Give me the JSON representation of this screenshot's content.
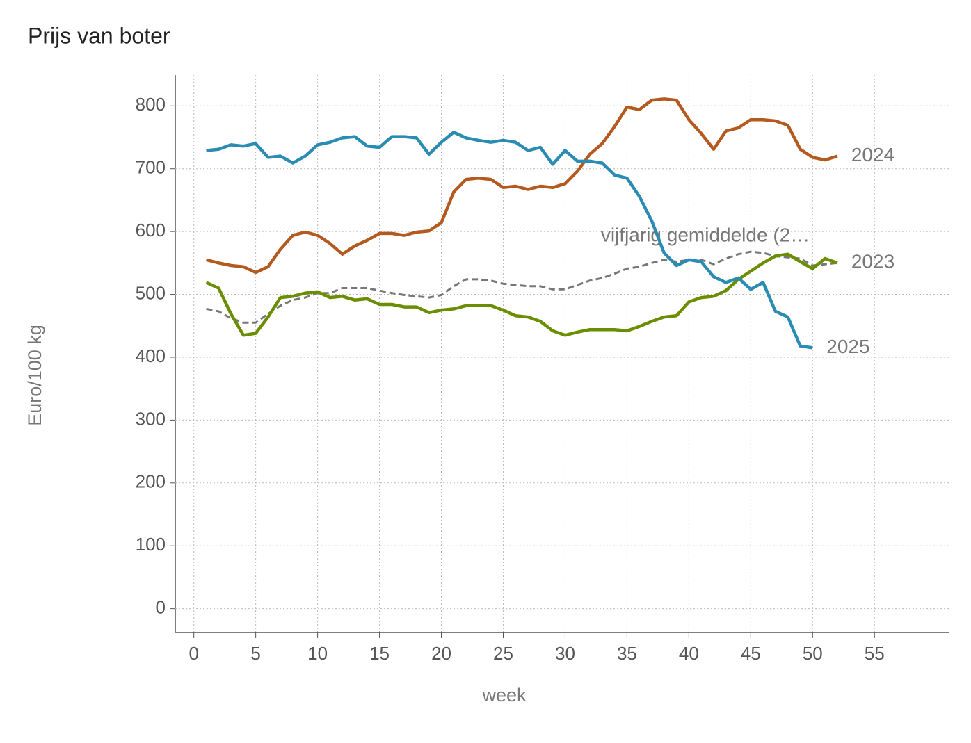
{
  "chart_data": {
    "type": "line",
    "title": "Prijs van boter",
    "x_label": "week",
    "y_label": "Euro/100 kg",
    "x": [
      1,
      2,
      3,
      4,
      5,
      6,
      7,
      8,
      9,
      10,
      11,
      12,
      13,
      14,
      15,
      16,
      17,
      18,
      19,
      20,
      21,
      22,
      23,
      24,
      25,
      26,
      27,
      28,
      29,
      30,
      31,
      32,
      33,
      34,
      35,
      36,
      37,
      38,
      39,
      40,
      41,
      42,
      43,
      44,
      45,
      46,
      47,
      48,
      49,
      50,
      51,
      52
    ],
    "series": [
      {
        "name": "vijfjarig gemiddelde (2…",
        "color": "#777777",
        "dashed": true,
        "values": [
          477,
          473,
          462,
          455,
          455,
          469,
          482,
          491,
          495,
          502,
          502,
          510,
          510,
          510,
          506,
          502,
          499,
          497,
          495,
          499,
          513,
          524,
          524,
          522,
          517,
          515,
          513,
          513,
          508,
          508,
          515,
          522,
          526,
          533,
          541,
          544,
          550,
          555,
          552,
          555,
          555,
          548,
          557,
          564,
          568,
          566,
          561,
          559,
          557,
          546,
          548,
          550
        ]
      },
      {
        "name": "2023",
        "color": "#6b8e00",
        "values": [
          519,
          510,
          469,
          435,
          438,
          464,
          495,
          497,
          502,
          504,
          495,
          497,
          491,
          493,
          484,
          484,
          480,
          480,
          471,
          475,
          477,
          482,
          482,
          482,
          475,
          466,
          464,
          457,
          442,
          435,
          440,
          444,
          444,
          444,
          442,
          449,
          457,
          464,
          466,
          488,
          495,
          497,
          506,
          524,
          537,
          550,
          561,
          564,
          552,
          541,
          557,
          550
        ]
      },
      {
        "name": "2024",
        "color": "#b55a1f",
        "values": [
          555,
          550,
          546,
          544,
          535,
          544,
          572,
          594,
          599,
          594,
          581,
          564,
          577,
          586,
          597,
          597,
          594,
          599,
          601,
          614,
          663,
          683,
          685,
          683,
          670,
          672,
          667,
          672,
          670,
          676,
          696,
          723,
          740,
          767,
          798,
          794,
          809,
          811,
          809,
          778,
          756,
          731,
          760,
          765,
          778,
          778,
          776,
          769,
          731,
          718,
          714,
          720
        ]
      },
      {
        "name": "2025",
        "color": "#2b8cb3",
        "values": [
          729,
          731,
          738,
          736,
          740,
          718,
          720,
          709,
          720,
          738,
          742,
          749,
          751,
          736,
          734,
          751,
          751,
          749,
          723,
          742,
          758,
          749,
          745,
          742,
          745,
          742,
          729,
          734,
          707,
          729,
          712,
          712,
          709,
          690,
          685,
          656,
          617,
          566,
          546,
          555,
          552,
          528,
          519,
          526,
          508,
          519,
          473,
          464,
          418,
          415,
          null,
          null
        ]
      }
    ],
    "xlim": [
      -1.5,
      61
    ],
    "ylim": [
      -38,
      849
    ],
    "xticks": [
      0,
      5,
      10,
      15,
      20,
      25,
      30,
      35,
      40,
      45,
      50,
      55
    ],
    "yticks": [
      0,
      100,
      200,
      300,
      400,
      500,
      600,
      700,
      800
    ],
    "grid": true
  }
}
